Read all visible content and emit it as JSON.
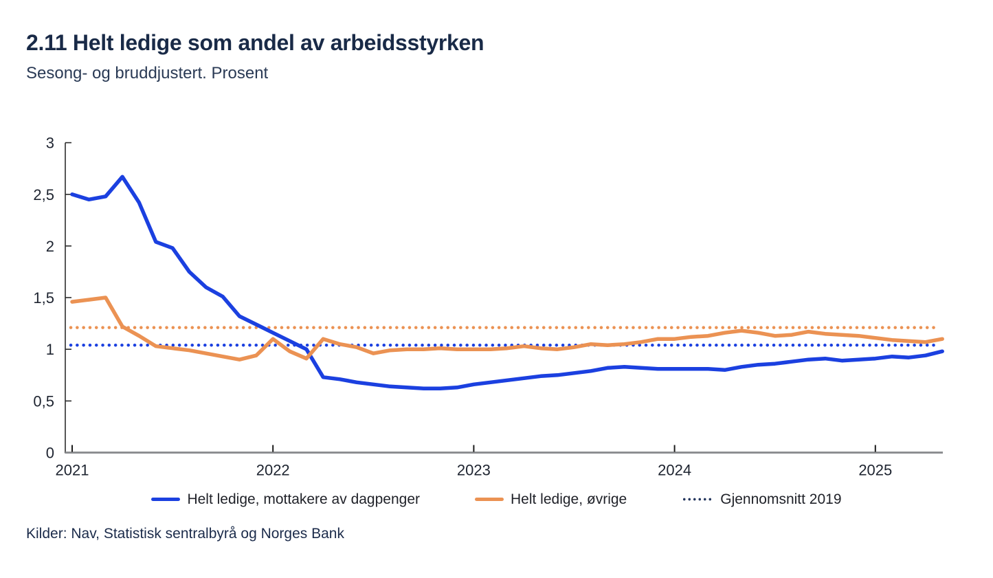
{
  "header": {
    "title": "2.11 Helt ledige som andel av arbeidsstyrken",
    "subtitle": "Sesong- og bruddjustert. Prosent"
  },
  "chart_data": {
    "type": "line",
    "title": "2.11 Helt ledige som andel av arbeidsstyrken",
    "subtitle": "Sesong- og bruddjustert. Prosent",
    "x_start": "2021-01",
    "x_interval": "monthly",
    "x_tick_labels": [
      "2021",
      "2022",
      "2023",
      "2024",
      "2025"
    ],
    "y_ticks": [
      0,
      0.5,
      1,
      1.5,
      2,
      2.5,
      3
    ],
    "y_tick_labels": [
      "0",
      "0,5",
      "1",
      "1,5",
      "2",
      "2,5",
      "3"
    ],
    "ylim": [
      0,
      3
    ],
    "grid": false,
    "legend_position": "bottom",
    "series": [
      {
        "name": "Helt ledige, mottakere av dagpenger",
        "color": "#1B40E0",
        "values": [
          2.5,
          2.45,
          2.48,
          2.67,
          2.42,
          2.04,
          1.98,
          1.75,
          1.6,
          1.51,
          1.32,
          1.24,
          1.16,
          1.08,
          1.0,
          0.73,
          0.71,
          0.68,
          0.66,
          0.64,
          0.63,
          0.62,
          0.62,
          0.63,
          0.66,
          0.68,
          0.7,
          0.72,
          0.74,
          0.75,
          0.77,
          0.79,
          0.82,
          0.83,
          0.82,
          0.81,
          0.81,
          0.81,
          0.81,
          0.8,
          0.83,
          0.85,
          0.86,
          0.88,
          0.9,
          0.91,
          0.89,
          0.9,
          0.91,
          0.93,
          0.92,
          0.94,
          0.98
        ]
      },
      {
        "name": "Helt ledige, øvrige",
        "color": "#EB9253",
        "values": [
          1.46,
          1.48,
          1.5,
          1.22,
          1.13,
          1.03,
          1.01,
          0.99,
          0.96,
          0.93,
          0.9,
          0.94,
          1.1,
          0.98,
          0.91,
          1.1,
          1.05,
          1.02,
          0.96,
          0.99,
          1.0,
          1.0,
          1.01,
          1.0,
          1.0,
          1.0,
          1.01,
          1.03,
          1.01,
          1.0,
          1.02,
          1.05,
          1.04,
          1.05,
          1.07,
          1.1,
          1.1,
          1.12,
          1.13,
          1.16,
          1.18,
          1.16,
          1.13,
          1.14,
          1.17,
          1.15,
          1.14,
          1.13,
          1.11,
          1.09,
          1.08,
          1.07,
          1.1
        ]
      }
    ],
    "reference_lines": [
      {
        "name": "Gjennomsnitt 2019, øvrige",
        "value": 1.21,
        "color": "#EB9253",
        "style": "dotted"
      },
      {
        "name": "Gjennomsnitt 2019, mottakere av dagpenger",
        "value": 1.04,
        "color": "#1B40E0",
        "style": "dotted"
      }
    ],
    "legend": [
      {
        "label": "Helt ledige, mottakere av dagpenger",
        "swatch": "solid-blue"
      },
      {
        "label": "Helt ledige, øvrige",
        "swatch": "solid-orange"
      },
      {
        "label": "Gjennomsnitt 2019",
        "swatch": "dotted-navy"
      }
    ]
  },
  "colors": {
    "blue_line": "#1B40E0",
    "orange_line": "#EB9253",
    "legend_dotted": "#24365E",
    "title_text": "#192A47",
    "axis_line_y": "#2B2B2B",
    "axis_line_x": "#8D8F92",
    "axis_tick": "#1A1A1A",
    "axis_label_text": "#1E2430"
  },
  "footer": {
    "source": "Kilder: Nav, Statistisk sentralbyrå og Norges Bank"
  }
}
